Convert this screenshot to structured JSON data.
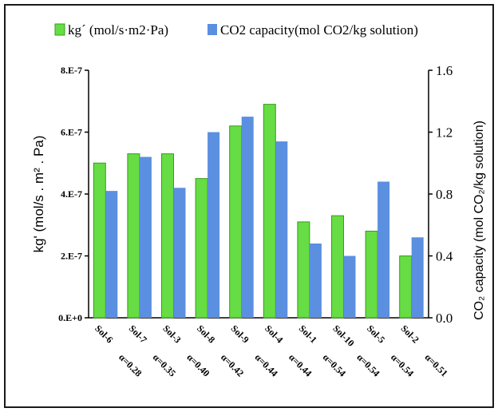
{
  "chart_data": {
    "type": "bar",
    "legend": [
      {
        "label": "kg´ (mol/s·m2·Pa)",
        "color": "#66dd44"
      },
      {
        "label": "CO2 capacity(mol CO2/kg solution)",
        "color": "#5b8fe0"
      }
    ],
    "ylabel_left": "kg' (mol/s . m² . Pa)",
    "ylabel_right": "CO₂ capacity (mol CO₂/kg solution)",
    "yticks_left": [
      "0.E+0",
      "2.E-7",
      "4.E-7",
      "6.E-7",
      "8.E-7"
    ],
    "yticks_right": [
      "0.0",
      "0.4",
      "0.8",
      "1.2",
      "1.6"
    ],
    "ylim_left": [
      0,
      8e-07
    ],
    "ylim_right": [
      0,
      1.6
    ],
    "categories": [
      {
        "name": "Sol-6",
        "alpha": "α=0.28"
      },
      {
        "name": "Sol-7",
        "alpha": "α=0.35"
      },
      {
        "name": "Sol-3",
        "alpha": "α=0.40"
      },
      {
        "name": "Sol-8",
        "alpha": "α=0.42"
      },
      {
        "name": "Sol-9",
        "alpha": "α=0.44"
      },
      {
        "name": "Sol-4",
        "alpha": "α=0.44"
      },
      {
        "name": "Sol-1",
        "alpha": "α=0.54"
      },
      {
        "name": "Sol-10",
        "alpha": "α=0.54"
      },
      {
        "name": "Sol-5",
        "alpha": "α=0.54"
      },
      {
        "name": "Sol-2",
        "alpha": "α=0.51"
      }
    ],
    "series": [
      {
        "name": "kg´ (mol/s·m2·Pa)",
        "axis": "left",
        "color": "#66dd44",
        "values": [
          5e-07,
          5.3e-07,
          5.3e-07,
          4.5e-07,
          6.2e-07,
          6.9e-07,
          3.1e-07,
          3.3e-07,
          2.8e-07,
          2e-07
        ]
      },
      {
        "name": "CO2 capacity(mol CO2/kg solution)",
        "axis": "right",
        "color": "#5b8fe0",
        "values": [
          0.82,
          1.04,
          0.84,
          1.2,
          1.3,
          1.14,
          0.48,
          0.4,
          0.88,
          0.52
        ]
      }
    ],
    "grid": false
  }
}
